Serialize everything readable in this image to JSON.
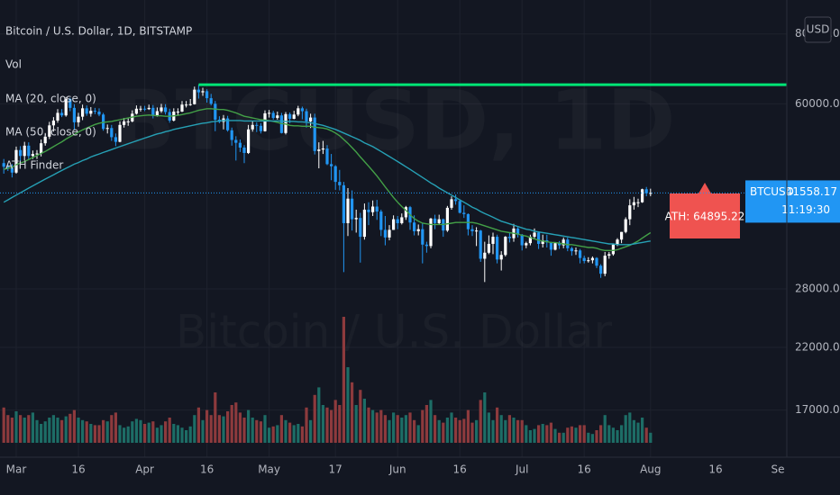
{
  "chart_data": {
    "type": "candlestick",
    "title": "Bitcoin / U.S. Dollar, 1D, BITSTAMP",
    "watermark": [
      "BTCUSD, 1D",
      "Bitcoin / U.S. Dollar"
    ],
    "currency": "USD",
    "log_scale": true,
    "grid": true,
    "up_color": "#ffffff",
    "down_color": "#2196f3",
    "ylim": [
      14000,
      92000
    ],
    "yticks": [
      {
        "value": 17000,
        "label": "17000.00"
      },
      {
        "value": 22000,
        "label": "22000.00"
      },
      {
        "value": 28000,
        "label": "28000.00"
      },
      {
        "value": 60000,
        "label": "60000.00"
      },
      {
        "value": 80000,
        "label": "80000.00"
      }
    ],
    "categories": [
      null,
      null,
      null,
      "Mar",
      null,
      null,
      null,
      null,
      null,
      null,
      null,
      null,
      null,
      null,
      null,
      null,
      null,
      null,
      "16",
      null,
      null,
      null,
      null,
      null,
      null,
      null,
      null,
      null,
      null,
      null,
      null,
      null,
      null,
      null,
      "Apr",
      null,
      null,
      null,
      null,
      null,
      null,
      null,
      null,
      null,
      null,
      null,
      null,
      null,
      null,
      "16",
      null,
      null,
      null,
      null,
      null,
      null,
      null,
      null,
      null,
      null,
      null,
      null,
      null,
      null,
      "May",
      null,
      null,
      null,
      null,
      null,
      null,
      null,
      null,
      null,
      null,
      null,
      null,
      null,
      null,
      null,
      "17",
      null,
      null,
      null,
      null,
      null,
      null,
      null,
      null,
      null,
      null,
      null,
      null,
      null,
      null,
      "Jun",
      null,
      null,
      null,
      null,
      null,
      null,
      null,
      null,
      null,
      null,
      null,
      null,
      null,
      null,
      "16",
      null,
      null,
      null,
      null,
      null,
      null,
      null,
      null,
      null,
      null,
      null,
      null,
      null,
      null,
      "Jul",
      null,
      null,
      null,
      null,
      null,
      null,
      null,
      null,
      null,
      null,
      null,
      null,
      null,
      null,
      "16",
      null,
      null,
      null,
      null,
      null,
      null,
      null,
      null,
      null,
      null,
      null,
      null,
      null,
      null,
      null,
      "Aug"
    ],
    "x_labels_beyond": [
      "16",
      "Se"
    ],
    "open": [
      47000,
      46300,
      46100,
      45200,
      49600,
      48400,
      50500,
      48400,
      48800,
      48900,
      51000,
      52400,
      54900,
      56000,
      57800,
      57200,
      61200,
      59000,
      55600,
      56900,
      58900,
      57600,
      58300,
      58100,
      57400,
      54100,
      54300,
      52300,
      51300,
      55000,
      55800,
      55800,
      57600,
      58800,
      58800,
      58700,
      59000,
      57100,
      58200,
      59100,
      58000,
      56000,
      58100,
      58100,
      59800,
      59800,
      59900,
      63600,
      62900,
      63200,
      61400,
      60000,
      56200,
      55700,
      56500,
      53800,
      51700,
      51100,
      50100,
      49000,
      54000,
      55000,
      54800,
      53600,
      57700,
      57800,
      56600,
      57200,
      53200,
      57500,
      56400,
      57400,
      58900,
      58200,
      55800,
      56700,
      49400,
      49700,
      49900,
      46800,
      46400,
      43500,
      42900,
      36700,
      40600,
      37300,
      37500,
      34700,
      38800,
      38400,
      39300,
      38500,
      35700,
      34600,
      35700,
      37300,
      36700,
      37600,
      39200,
      36800,
      35500,
      35800,
      33600,
      33400,
      37400,
      36700,
      37300,
      35600,
      39100,
      40500,
      40200,
      38300,
      38100,
      35800,
      35500,
      35600,
      31700,
      32500,
      33700,
      34700,
      31600,
      32200,
      34700,
      34500,
      35900,
      35000,
      33500,
      33800,
      34700,
      35300,
      33700,
      34200,
      33900,
      32900,
      33800,
      33500,
      34300,
      33100,
      32700,
      32800,
      31800,
      31400,
      31500,
      31800,
      30800,
      29800,
      32100,
      32300,
      33600,
      34300,
      35400,
      37300,
      39500,
      40000,
      40000,
      42200,
      41500
    ],
    "high": [
      47800,
      47000,
      46800,
      50300,
      50400,
      51300,
      51200,
      49500,
      49600,
      51800,
      53200,
      55700,
      56800,
      58700,
      58700,
      61700,
      61500,
      59900,
      57800,
      59800,
      59600,
      59200,
      59000,
      58900,
      57800,
      55100,
      55000,
      53100,
      55800,
      56600,
      56600,
      58400,
      59600,
      59500,
      59500,
      59800,
      59700,
      59100,
      60000,
      59900,
      58800,
      58900,
      58900,
      60700,
      60700,
      61200,
      64400,
      64895.22,
      64100,
      63700,
      62500,
      60700,
      57000,
      57300,
      57100,
      54400,
      52500,
      51800,
      50600,
      55000,
      55800,
      55600,
      55400,
      58400,
      58500,
      58300,
      58100,
      57800,
      58000,
      57900,
      58300,
      59500,
      59300,
      58800,
      57600,
      57600,
      51200,
      51500,
      50600,
      48800,
      46600,
      45700,
      43500,
      42400,
      42000,
      38800,
      38300,
      39800,
      40000,
      40300,
      40400,
      38800,
      37800,
      36400,
      37900,
      37800,
      38200,
      39400,
      39400,
      37900,
      36500,
      36700,
      34000,
      37500,
      38000,
      38000,
      37400,
      39400,
      41000,
      41300,
      40500,
      39500,
      38200,
      36400,
      36100,
      35700,
      34000,
      34900,
      35300,
      35000,
      32700,
      34800,
      35300,
      36600,
      36100,
      35100,
      34000,
      35000,
      35900,
      35500,
      35000,
      35000,
      34000,
      33900,
      34100,
      34600,
      34600,
      33300,
      33200,
      33000,
      32100,
      31900,
      32000,
      31900,
      31000,
      32600,
      32600,
      33700,
      34500,
      35400,
      37600,
      40500,
      40900,
      40600,
      42300,
      42600,
      42300
    ],
    "low": [
      45000,
      45500,
      44300,
      45000,
      47100,
      47500,
      47600,
      47800,
      47800,
      48300,
      50500,
      51900,
      53500,
      55500,
      56800,
      56900,
      58200,
      53900,
      54600,
      56100,
      57100,
      56900,
      57500,
      57000,
      53700,
      53100,
      51500,
      50400,
      51200,
      54400,
      54800,
      55600,
      57400,
      58100,
      58200,
      58500,
      56500,
      56900,
      57800,
      57400,
      55500,
      55800,
      57100,
      58000,
      59100,
      59500,
      59800,
      61300,
      62000,
      60300,
      59600,
      53600,
      55400,
      54000,
      53500,
      50500,
      47500,
      49200,
      47000,
      48800,
      53500,
      53400,
      53100,
      53500,
      56700,
      56200,
      56200,
      53100,
      52900,
      55400,
      56300,
      57000,
      56300,
      54400,
      54300,
      48700,
      46000,
      48800,
      46600,
      43800,
      42100,
      42000,
      30000,
      34800,
      35600,
      35300,
      31200,
      34300,
      36400,
      37800,
      37200,
      34800,
      33500,
      34200,
      35700,
      35800,
      36500,
      37200,
      35700,
      34900,
      34900,
      31100,
      32500,
      33100,
      35800,
      36500,
      34700,
      35400,
      38800,
      39600,
      38200,
      37500,
      34900,
      34800,
      33400,
      31300,
      28800,
      32300,
      32300,
      31100,
      30200,
      32000,
      33900,
      34000,
      34600,
      32800,
      33100,
      33500,
      34500,
      33000,
      33200,
      33200,
      32100,
      32800,
      33000,
      33100,
      32700,
      32100,
      32200,
      31100,
      31100,
      31200,
      31100,
      30500,
      29300,
      29500,
      31700,
      32100,
      33400,
      33800,
      35200,
      36400,
      38800,
      39200,
      39900,
      41000,
      41000
    ],
    "close": [
      46300,
      46100,
      45200,
      49600,
      48400,
      50500,
      48400,
      48800,
      48900,
      51000,
      52400,
      54900,
      56000,
      57800,
      57200,
      61200,
      59000,
      55600,
      56900,
      58900,
      57600,
      58300,
      58100,
      57400,
      54100,
      54300,
      52300,
      51300,
      55000,
      55800,
      55800,
      57600,
      58800,
      58800,
      58700,
      59000,
      57100,
      58200,
      59100,
      58000,
      56000,
      58100,
      58100,
      59800,
      59800,
      59900,
      63600,
      62900,
      63200,
      61400,
      60000,
      56200,
      55700,
      56500,
      53800,
      51700,
      51100,
      50100,
      49000,
      54000,
      55000,
      54800,
      53600,
      57700,
      57800,
      56600,
      57200,
      53200,
      57500,
      56400,
      57400,
      58900,
      58200,
      55800,
      56700,
      49400,
      49700,
      49900,
      46800,
      46400,
      43500,
      42900,
      36700,
      40600,
      37300,
      37500,
      34700,
      38800,
      38400,
      39300,
      38500,
      35700,
      34600,
      35700,
      37300,
      36700,
      37600,
      39200,
      36800,
      35500,
      35800,
      33600,
      33400,
      37400,
      36700,
      37300,
      35600,
      39100,
      40500,
      40200,
      38300,
      38100,
      35800,
      35500,
      35600,
      31700,
      32500,
      33700,
      34700,
      31600,
      32200,
      34700,
      34500,
      35900,
      35000,
      33500,
      33800,
      34700,
      35300,
      33700,
      34200,
      33900,
      32900,
      33800,
      33500,
      34300,
      33100,
      32700,
      32800,
      31800,
      31400,
      31500,
      31800,
      30800,
      29800,
      32100,
      32300,
      33600,
      34300,
      35400,
      37300,
      39500,
      40000,
      40000,
      42200,
      41500,
      41558.17
    ],
    "series": [
      {
        "name": "MA (20, close, 0)",
        "color": "#43a047",
        "values": [
          45800,
          46000,
          46200,
          46700,
          47000,
          47300,
          47700,
          48100,
          48500,
          48900,
          49300,
          49800,
          50300,
          50800,
          51300,
          51900,
          52400,
          52900,
          53400,
          53900,
          54300,
          54700,
          55100,
          55400,
          55600,
          55700,
          55800,
          56000,
          56200,
          56400,
          56600,
          56800,
          57000,
          57100,
          57200,
          57300,
          57200,
          57100,
          57100,
          57000,
          57000,
          57100,
          57200,
          57400,
          57600,
          57800,
          58100,
          58400,
          58600,
          58800,
          58800,
          58700,
          58600,
          58600,
          58400,
          58100,
          57800,
          57400,
          57000,
          56800,
          56600,
          56400,
          56200,
          56100,
          56000,
          55800,
          55600,
          55300,
          55200,
          54900,
          54800,
          54800,
          54700,
          54700,
          54700,
          54500,
          54400,
          54300,
          54100,
          53700,
          53200,
          52600,
          51800,
          51000,
          50100,
          49200,
          48200,
          47300,
          46400,
          45500,
          44600,
          43600,
          42600,
          41700,
          40800,
          40000,
          39300,
          38700,
          38000,
          37400,
          37000,
          36700,
          36600,
          36500,
          36500,
          36500,
          36500,
          36600,
          36700,
          36800,
          36800,
          36800,
          36800,
          36800,
          36700,
          36500,
          36300,
          36100,
          35900,
          35700,
          35500,
          35400,
          35300,
          35200,
          35100,
          34900,
          34800,
          34600,
          34400,
          34200,
          34100,
          34000,
          33900,
          33900,
          33800,
          33700,
          33600,
          33600,
          33500,
          33400,
          33300,
          33200,
          33200,
          33100,
          32900,
          32800,
          32800,
          32800,
          32900,
          33100,
          33300,
          33500,
          33800,
          34100,
          34500,
          34900,
          35300
        ]
      },
      {
        "name": "MA (50, close, 0)",
        "color": "#26a0b5",
        "values": [
          40000,
          40400,
          40800,
          41200,
          41600,
          42000,
          42400,
          42800,
          43200,
          43600,
          44000,
          44400,
          44800,
          45200,
          45600,
          46000,
          46400,
          46800,
          47100,
          47500,
          47800,
          48200,
          48500,
          48800,
          49100,
          49400,
          49700,
          50000,
          50300,
          50600,
          50900,
          51200,
          51500,
          51800,
          52100,
          52400,
          52700,
          53000,
          53200,
          53500,
          53700,
          54000,
          54200,
          54400,
          54600,
          54800,
          55000,
          55200,
          55400,
          55500,
          55700,
          55800,
          55900,
          56000,
          56000,
          56000,
          56000,
          56000,
          55900,
          55900,
          55900,
          55900,
          55900,
          55900,
          55900,
          55900,
          55900,
          55900,
          55800,
          55800,
          55800,
          55700,
          55700,
          55600,
          55500,
          55300,
          55100,
          54900,
          54600,
          54300,
          54000,
          53600,
          53200,
          52800,
          52400,
          52000,
          51600,
          51100,
          50700,
          50300,
          49800,
          49300,
          48800,
          48300,
          47800,
          47300,
          46800,
          46300,
          45800,
          45300,
          44800,
          44300,
          43800,
          43300,
          42900,
          42400,
          42000,
          41600,
          41200,
          40800,
          40400,
          40000,
          39600,
          39200,
          38900,
          38500,
          38200,
          37900,
          37600,
          37300,
          37000,
          36800,
          36600,
          36400,
          36200,
          36000,
          35800,
          35700,
          35500,
          35400,
          35300,
          35200,
          35100,
          35000,
          34900,
          34800,
          34700,
          34600,
          34500,
          34400,
          34300,
          34200,
          34100,
          34000,
          33900,
          33800,
          33700,
          33700,
          33600,
          33600,
          33600,
          33600,
          33700,
          33800,
          33900,
          34000,
          34100
        ]
      }
    ],
    "volume": {
      "name": "Vol",
      "up_color": "#1d6d66",
      "down_color": "#8d3a3d",
      "y2lim": [
        0,
        100
      ],
      "values": [
        28,
        22,
        20,
        25,
        22,
        20,
        22,
        24,
        18,
        15,
        17,
        20,
        22,
        20,
        18,
        21,
        23,
        26,
        20,
        18,
        17,
        15,
        14,
        14,
        18,
        17,
        22,
        24,
        14,
        12,
        13,
        17,
        19,
        18,
        15,
        16,
        17,
        12,
        14,
        17,
        20,
        15,
        14,
        12,
        10,
        13,
        22,
        28,
        18,
        26,
        22,
        40,
        22,
        21,
        25,
        30,
        32,
        24,
        20,
        26,
        20,
        18,
        17,
        22,
        12,
        13,
        14,
        22,
        18,
        16,
        14,
        15,
        13,
        28,
        18,
        38,
        44,
        30,
        28,
        26,
        34,
        30,
        100,
        60,
        48,
        30,
        42,
        35,
        28,
        26,
        24,
        26,
        22,
        18,
        24,
        22,
        20,
        22,
        24,
        18,
        14,
        26,
        30,
        34,
        22,
        18,
        16,
        20,
        24,
        20,
        18,
        19,
        26,
        16,
        18,
        34,
        40,
        24,
        18,
        28,
        22,
        18,
        22,
        20,
        18,
        18,
        14,
        10,
        11,
        14,
        15,
        14,
        16,
        11,
        8,
        8,
        12,
        13,
        12,
        14,
        14,
        8,
        7,
        10,
        14,
        22,
        14,
        12,
        10,
        14,
        22,
        24,
        18,
        16,
        20,
        12,
        8
      ]
    },
    "ath": {
      "name": "ATH Finder",
      "value": 64895.22,
      "label": "ATH: 64895.22",
      "color": "#00e676",
      "label_color": "#ef5350"
    },
    "last_price": {
      "symbol": "BTCUSD",
      "countdown": "11:19:30",
      "color": "#2196f3"
    }
  }
}
